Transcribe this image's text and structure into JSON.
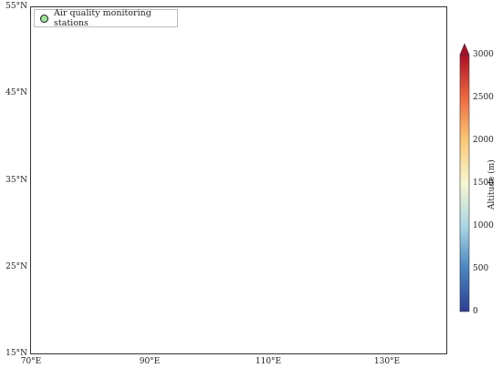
{
  "legend": {
    "label": "Air quality monitoring stations"
  },
  "axes": {
    "y_ticks": [
      "55°N",
      "45°N",
      "35°N",
      "25°N",
      "15°N"
    ],
    "x_ticks": [
      "70°E",
      "90°E",
      "110°E",
      "130°E"
    ]
  },
  "colorbar": {
    "title": "Altitude (m)",
    "ticks": [
      "3000",
      "2500",
      "2000",
      "1500",
      "1000",
      "500",
      "0"
    ],
    "colors": [
      "#2c3e95",
      "#3f7fbf",
      "#8ec6df",
      "#f4f4c8",
      "#fbc675",
      "#ed6a3f",
      "#b10d25"
    ]
  },
  "map": {
    "extent": {
      "lon": [
        70,
        140
      ],
      "lat": [
        15,
        55
      ]
    },
    "station_color": "#9ee59a",
    "station_edge": "#1a1a1a",
    "has_inset": true
  }
}
